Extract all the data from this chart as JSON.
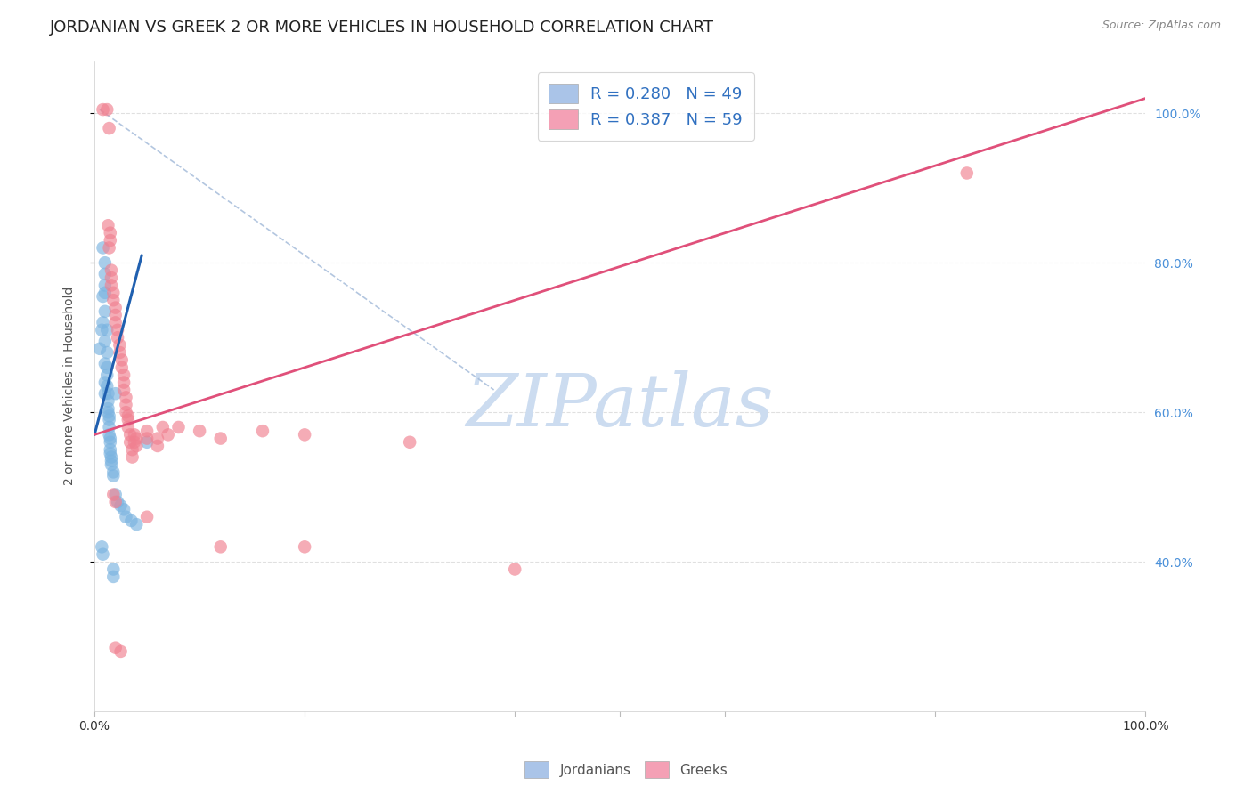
{
  "title": "JORDANIAN VS GREEK 2 OR MORE VEHICLES IN HOUSEHOLD CORRELATION CHART",
  "source": "Source: ZipAtlas.com",
  "ylabel": "2 or more Vehicles in Household",
  "watermark": "ZIPatlas",
  "legend_entries": [
    {
      "label": "R = 0.280   N = 49",
      "color": "#aac4e8"
    },
    {
      "label": "R = 0.387   N = 59",
      "color": "#f4a0b5"
    }
  ],
  "jordanian_scatter": [
    [
      0.005,
      0.685
    ],
    [
      0.007,
      0.71
    ],
    [
      0.008,
      0.755
    ],
    [
      0.008,
      0.72
    ],
    [
      0.01,
      0.76
    ],
    [
      0.01,
      0.735
    ],
    [
      0.01,
      0.695
    ],
    [
      0.01,
      0.665
    ],
    [
      0.01,
      0.64
    ],
    [
      0.01,
      0.625
    ],
    [
      0.012,
      0.71
    ],
    [
      0.012,
      0.68
    ],
    [
      0.012,
      0.66
    ],
    [
      0.012,
      0.65
    ],
    [
      0.012,
      0.635
    ],
    [
      0.013,
      0.625
    ],
    [
      0.013,
      0.615
    ],
    [
      0.013,
      0.605
    ],
    [
      0.013,
      0.6
    ],
    [
      0.014,
      0.595
    ],
    [
      0.014,
      0.59
    ],
    [
      0.014,
      0.58
    ],
    [
      0.014,
      0.57
    ],
    [
      0.015,
      0.565
    ],
    [
      0.015,
      0.56
    ],
    [
      0.015,
      0.55
    ],
    [
      0.015,
      0.545
    ],
    [
      0.016,
      0.54
    ],
    [
      0.016,
      0.535
    ],
    [
      0.016,
      0.53
    ],
    [
      0.018,
      0.52
    ],
    [
      0.018,
      0.515
    ],
    [
      0.02,
      0.625
    ],
    [
      0.02,
      0.49
    ],
    [
      0.022,
      0.48
    ],
    [
      0.025,
      0.475
    ],
    [
      0.028,
      0.47
    ],
    [
      0.03,
      0.46
    ],
    [
      0.035,
      0.455
    ],
    [
      0.04,
      0.45
    ],
    [
      0.007,
      0.42
    ],
    [
      0.008,
      0.41
    ],
    [
      0.018,
      0.39
    ],
    [
      0.018,
      0.38
    ],
    [
      0.05,
      0.56
    ],
    [
      0.008,
      0.82
    ],
    [
      0.01,
      0.8
    ],
    [
      0.01,
      0.785
    ],
    [
      0.01,
      0.77
    ]
  ],
  "greek_scatter": [
    [
      0.008,
      1.005
    ],
    [
      0.012,
      1.005
    ],
    [
      0.014,
      0.98
    ],
    [
      0.013,
      0.85
    ],
    [
      0.015,
      0.84
    ],
    [
      0.015,
      0.83
    ],
    [
      0.014,
      0.82
    ],
    [
      0.016,
      0.79
    ],
    [
      0.016,
      0.78
    ],
    [
      0.016,
      0.77
    ],
    [
      0.018,
      0.76
    ],
    [
      0.018,
      0.75
    ],
    [
      0.02,
      0.74
    ],
    [
      0.02,
      0.73
    ],
    [
      0.02,
      0.72
    ],
    [
      0.022,
      0.71
    ],
    [
      0.022,
      0.7
    ],
    [
      0.024,
      0.69
    ],
    [
      0.024,
      0.68
    ],
    [
      0.026,
      0.67
    ],
    [
      0.026,
      0.66
    ],
    [
      0.028,
      0.65
    ],
    [
      0.028,
      0.64
    ],
    [
      0.028,
      0.63
    ],
    [
      0.03,
      0.62
    ],
    [
      0.03,
      0.61
    ],
    [
      0.03,
      0.6
    ],
    [
      0.032,
      0.595
    ],
    [
      0.032,
      0.59
    ],
    [
      0.032,
      0.58
    ],
    [
      0.034,
      0.57
    ],
    [
      0.034,
      0.56
    ],
    [
      0.036,
      0.55
    ],
    [
      0.036,
      0.54
    ],
    [
      0.038,
      0.57
    ],
    [
      0.038,
      0.56
    ],
    [
      0.04,
      0.565
    ],
    [
      0.04,
      0.555
    ],
    [
      0.05,
      0.575
    ],
    [
      0.05,
      0.565
    ],
    [
      0.065,
      0.58
    ],
    [
      0.07,
      0.57
    ],
    [
      0.06,
      0.565
    ],
    [
      0.06,
      0.555
    ],
    [
      0.08,
      0.58
    ],
    [
      0.1,
      0.575
    ],
    [
      0.12,
      0.565
    ],
    [
      0.16,
      0.575
    ],
    [
      0.2,
      0.57
    ],
    [
      0.3,
      0.56
    ],
    [
      0.4,
      0.39
    ],
    [
      0.018,
      0.49
    ],
    [
      0.02,
      0.48
    ],
    [
      0.05,
      0.46
    ],
    [
      0.12,
      0.42
    ],
    [
      0.2,
      0.42
    ],
    [
      0.02,
      0.285
    ],
    [
      0.025,
      0.28
    ],
    [
      0.83,
      0.92
    ]
  ],
  "jordanian_line": {
    "x": [
      0.0,
      0.045
    ],
    "y": [
      0.57,
      0.81
    ]
  },
  "greek_line": {
    "x": [
      0.0,
      1.0
    ],
    "y": [
      0.57,
      1.02
    ]
  },
  "identity_line": {
    "x": [
      0.005,
      0.38
    ],
    "y": [
      1.005,
      0.63
    ]
  },
  "scatter_size": 110,
  "jordanian_color": "#7ab3e0",
  "greek_color": "#f08090",
  "jordanian_alpha": 0.65,
  "greek_alpha": 0.65,
  "jordanian_line_color": "#2060b0",
  "greek_line_color": "#e0507a",
  "identity_line_color": "#a0b8d8",
  "bg_color": "#ffffff",
  "grid_color": "#dddddd",
  "title_fontsize": 13,
  "axis_fontsize": 10,
  "watermark_color": "#ccdcf0",
  "watermark_fontsize": 60,
  "right_ytick_color": "#4a90d9",
  "ylim_min": 0.2,
  "ylim_max": 1.07,
  "xlim_min": 0.0,
  "xlim_max": 1.0
}
